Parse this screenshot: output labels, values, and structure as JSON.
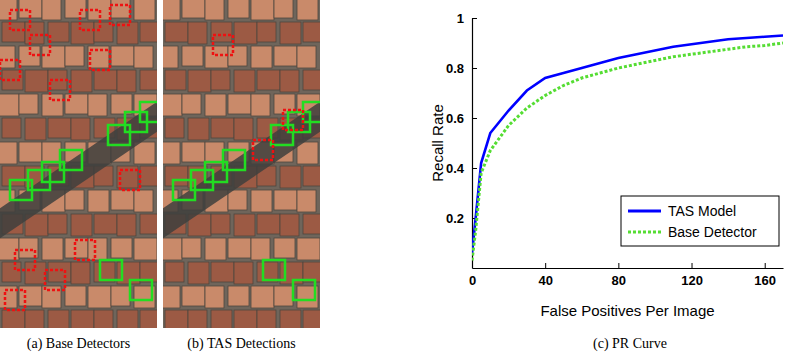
{
  "images": [
    {
      "caption": "(a) Base Detectors"
    },
    {
      "caption": "(b) TAS Detections"
    }
  ],
  "chart_data": {
    "type": "line",
    "title": "(c) PR Curve",
    "x_label": "False Positives Per Image",
    "y_label": "Recall Rate",
    "x": [
      0,
      2,
      5,
      10,
      20,
      30,
      40,
      50,
      60,
      70,
      80,
      90,
      100,
      110,
      120,
      130,
      140,
      150,
      160,
      170
    ],
    "series": [
      {
        "name": "TAS Model",
        "color": "#0000ff",
        "line_style": "solid",
        "values": [
          0.06,
          0.2,
          0.42,
          0.54,
          0.63,
          0.71,
          0.76,
          0.78,
          0.8,
          0.82,
          0.84,
          0.855,
          0.87,
          0.885,
          0.895,
          0.905,
          0.915,
          0.92,
          0.925,
          0.93
        ]
      },
      {
        "name": "Base Detector",
        "color": "#55dd33",
        "line_style": "dashed",
        "values": [
          0.03,
          0.15,
          0.38,
          0.47,
          0.57,
          0.64,
          0.69,
          0.73,
          0.76,
          0.78,
          0.8,
          0.815,
          0.83,
          0.845,
          0.855,
          0.865,
          0.875,
          0.885,
          0.89,
          0.9
        ]
      }
    ],
    "xlim": [
      0,
      170
    ],
    "ylim": [
      0,
      1
    ],
    "xticks": [
      0,
      40,
      80,
      120,
      160
    ],
    "yticks": [
      0.2,
      0.4,
      0.6,
      0.8,
      1
    ],
    "legend": "lower-right",
    "grid": false
  }
}
